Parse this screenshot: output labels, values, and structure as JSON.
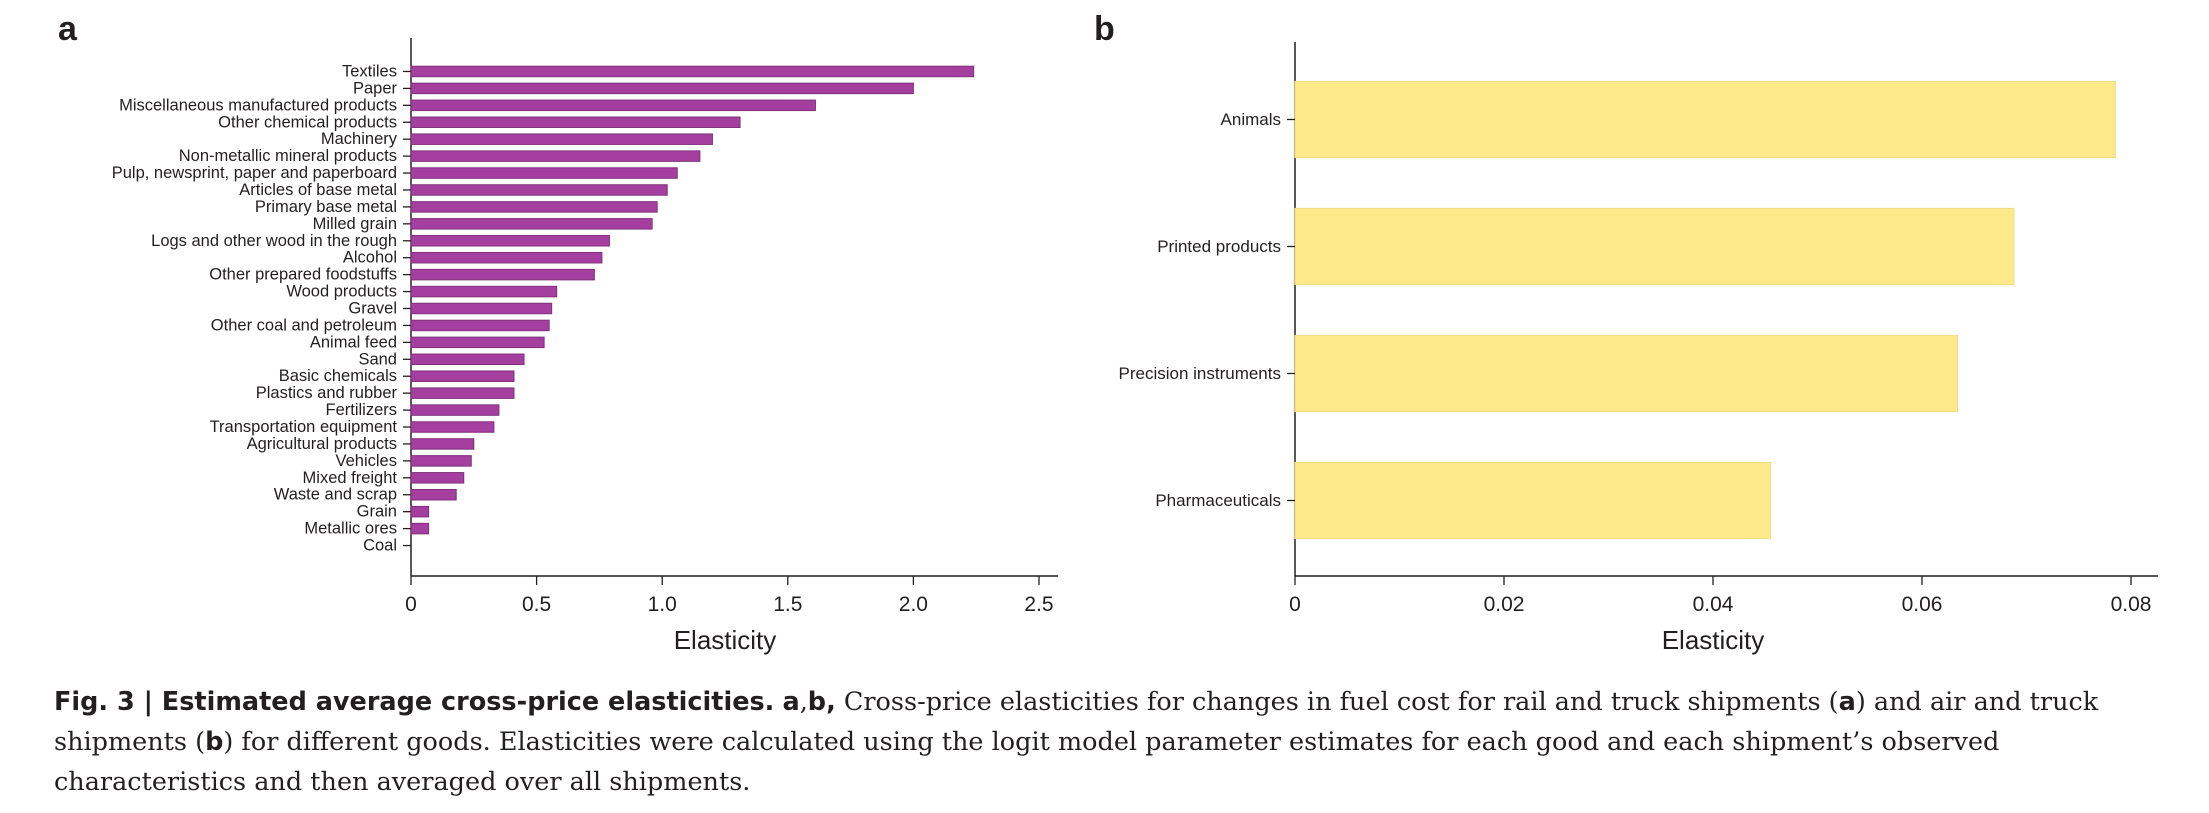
{
  "chart_data": [
    {
      "panel": "a",
      "type": "bar",
      "orientation": "horizontal",
      "categories": [
        "Textiles",
        "Paper",
        "Miscellaneous manufactured products",
        "Other chemical products",
        "Machinery",
        "Non-metallic mineral products",
        "Pulp, newsprint, paper and paperboard",
        "Articles of base metal",
        "Primary base metal",
        "Milled grain",
        "Logs and other wood in the rough",
        "Alcohol",
        "Other prepared foodstuffs",
        "Wood products",
        "Gravel",
        "Other coal and petroleum",
        "Animal feed",
        "Sand",
        "Basic chemicals",
        "Plastics and rubber",
        "Fertilizers",
        "Transportation equipment",
        "Agricultural products",
        "Vehicles",
        "Mixed freight",
        "Waste and scrap",
        "Grain",
        "Metallic ores",
        "Coal"
      ],
      "values": [
        2.24,
        2.0,
        1.61,
        1.31,
        1.2,
        1.15,
        1.06,
        1.02,
        0.98,
        0.96,
        0.79,
        0.76,
        0.73,
        0.58,
        0.56,
        0.55,
        0.53,
        0.45,
        0.41,
        0.41,
        0.35,
        0.33,
        0.25,
        0.24,
        0.21,
        0.18,
        0.07,
        0.07,
        0.0
      ],
      "xlabel": "Elasticity",
      "xlim": [
        0,
        2.5
      ],
      "xticks": [
        "0",
        "0.5",
        "1.0",
        "1.5",
        "2.0",
        "2.5"
      ],
      "bar_color": "#a43f9f",
      "grid": false
    },
    {
      "panel": "b",
      "type": "bar",
      "orientation": "horizontal",
      "categories": [
        "Animals",
        "Printed products",
        "Precision instruments",
        "Pharmaceuticals"
      ],
      "values": [
        0.0785,
        0.0688,
        0.0634,
        0.0455
      ],
      "xlabel": "Elasticity",
      "xlim": [
        0,
        0.08
      ],
      "xticks": [
        "0",
        "0.02",
        "0.04",
        "0.06",
        "0.08"
      ],
      "bar_color": "#fde98a",
      "grid": false
    }
  ],
  "caption": {
    "fig_label": "Fig. 3 | Estimated average cross-price elasticities.",
    "panel_a": "a",
    "comma1": ",",
    "panel_b": "b",
    "comma2": ",",
    "text_1": " Cross-price elasticities for changes in fuel cost for rail and truck shipments (",
    "ref_a": "a",
    "text_2": ") and air and truck shipments (",
    "ref_b": "b",
    "text_3": ") for different goods. Elasticities were calculated using the logit model parameter estimates for each good and each shipment’s observed characteristics and then averaged over all shipments."
  }
}
